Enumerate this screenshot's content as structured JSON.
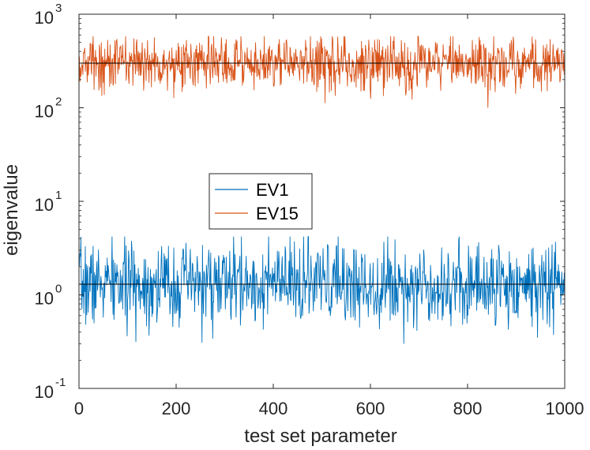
{
  "chart_data": {
    "type": "line",
    "title": "",
    "xlabel": "test set parameter",
    "ylabel": "eigenvalue",
    "xlim": [
      0,
      1000
    ],
    "ylim": [
      0.1,
      1000
    ],
    "yscale": "log",
    "x_ticks": [
      "0",
      "200",
      "400",
      "600",
      "800",
      "1000"
    ],
    "y_ticks": [
      {
        "base": "10",
        "exp": "-1"
      },
      {
        "base": "10",
        "exp": "0"
      },
      {
        "base": "10",
        "exp": "1"
      },
      {
        "base": "10",
        "exp": "2"
      },
      {
        "base": "10",
        "exp": "3"
      }
    ],
    "legend_location": "center-left",
    "series": [
      {
        "name": "EV1",
        "color": "#0072BD",
        "n_points": 1000,
        "mean_level": 1.3,
        "min": 0.3,
        "max": 4.2,
        "seed": 7
      },
      {
        "name": "EV15",
        "color": "#D95319",
        "n_points": 1000,
        "mean_level": 300,
        "min": 100,
        "max": 580,
        "seed": 13
      }
    ],
    "reference_lines": [
      {
        "y": 1.3,
        "color": "#000000"
      },
      {
        "y": 300,
        "color": "#000000"
      }
    ]
  }
}
